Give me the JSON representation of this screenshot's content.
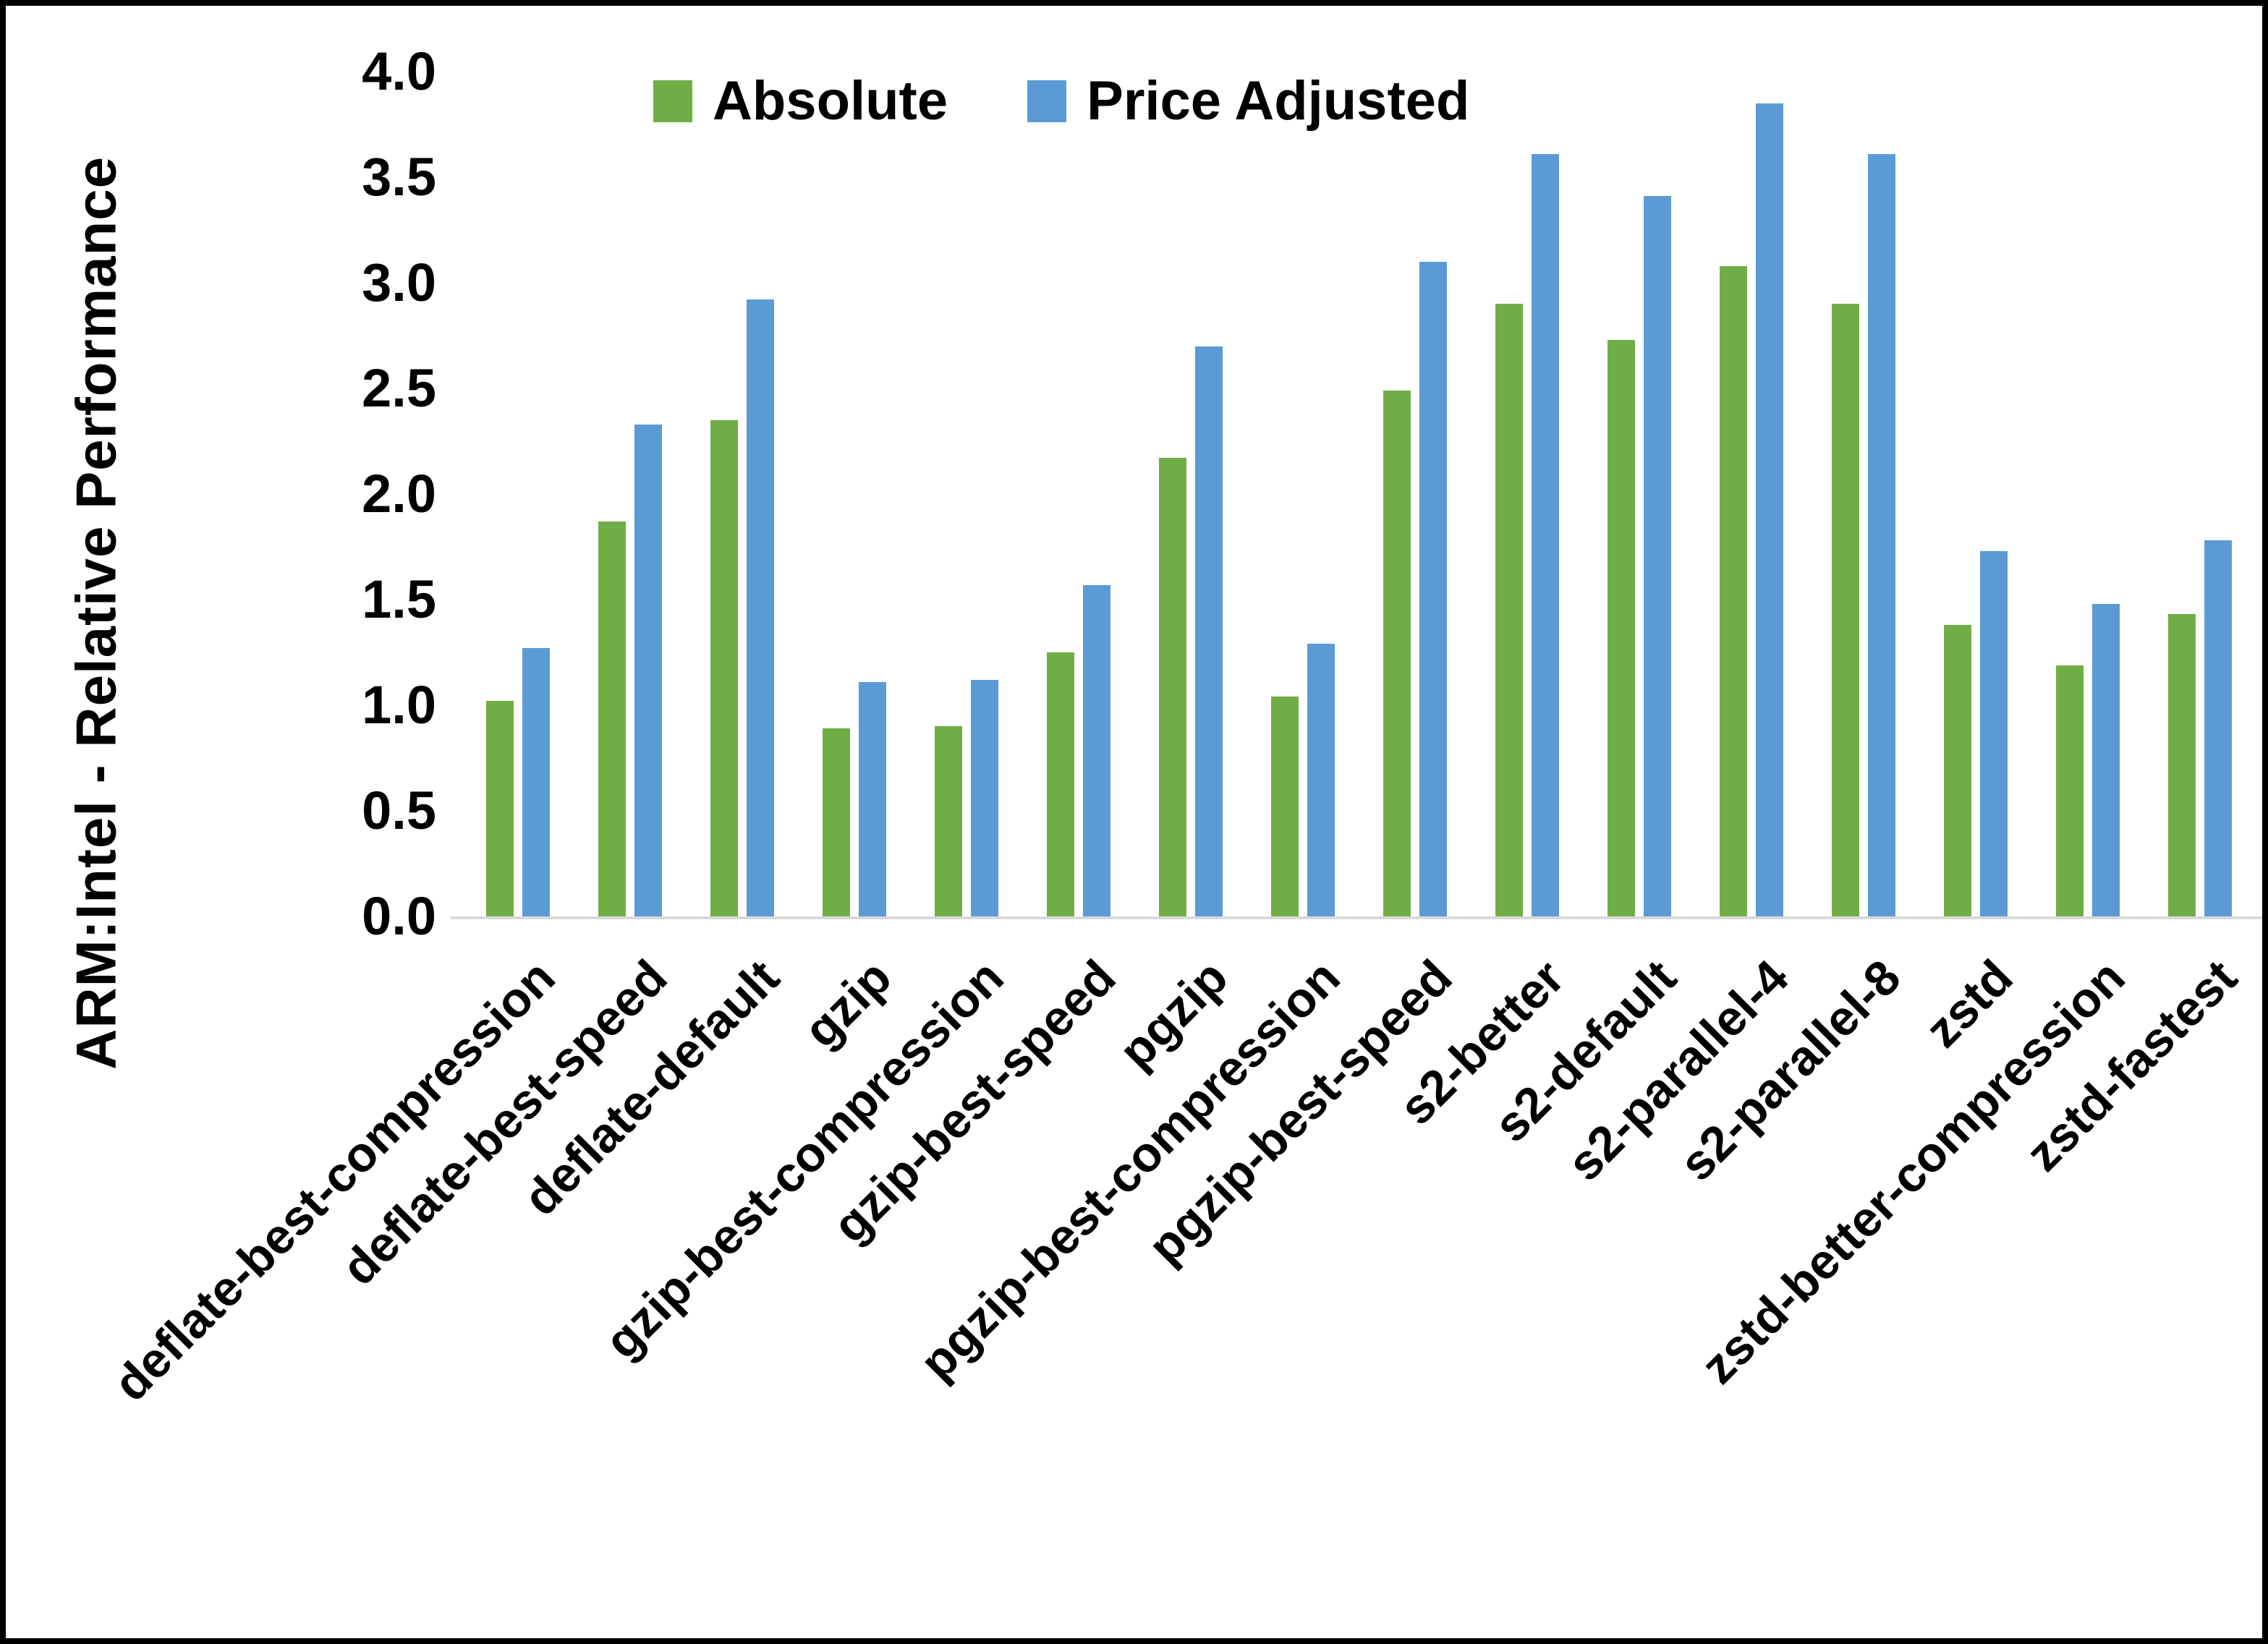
{
  "chart_data": {
    "type": "bar",
    "title": "",
    "xlabel": "",
    "ylabel": "ARM:Intel - Relative Performance",
    "ylim": [
      0.0,
      4.0
    ],
    "ytick_labels": [
      "0.0",
      "0.5",
      "1.0",
      "1.5",
      "2.0",
      "2.5",
      "3.0",
      "3.5",
      "4.0"
    ],
    "grid": false,
    "legend_position": "top-center",
    "background_color": "#ffffff",
    "axis_line_color": "#d9d9d9",
    "categories": [
      "deflate-best-compression",
      "deflate-best-speed",
      "deflate-default",
      "gzip",
      "gzip-best-compression",
      "gzip-best-speed",
      "pgzip",
      "pgzip-best-compression",
      "pgzip-best-speed",
      "s2-better",
      "s2-default",
      "s2-parallel-4",
      "s2-parallel-8",
      "zstd",
      "zstd-better-compression",
      "zstd-fastest"
    ],
    "series": [
      {
        "name": "Absolute",
        "color": "#70AD47",
        "values": [
          1.02,
          1.87,
          2.35,
          0.89,
          0.9,
          1.25,
          2.17,
          1.04,
          2.49,
          2.9,
          2.73,
          3.08,
          2.9,
          1.38,
          1.19,
          1.43
        ]
      },
      {
        "name": "Price Adjusted",
        "color": "#5B9BD5",
        "values": [
          1.27,
          2.33,
          2.92,
          1.11,
          1.12,
          1.57,
          2.7,
          1.29,
          3.1,
          3.61,
          3.41,
          3.85,
          3.61,
          1.73,
          1.48,
          1.78
        ]
      }
    ]
  }
}
